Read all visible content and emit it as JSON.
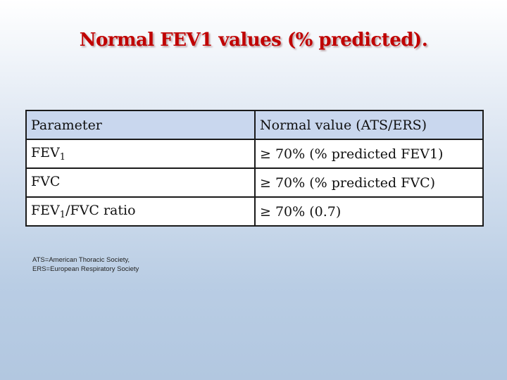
{
  "title": "Normal FEV1 values (% predicted).",
  "table": {
    "header": {
      "parameter": "Parameter",
      "normal_value": "Normal value (ATS/ERS)"
    },
    "rows": [
      {
        "param_main": "FEV",
        "param_sub": "1",
        "param_rest": "",
        "value": "≥ 70% (% predicted FEV1)"
      },
      {
        "param_main": "FVC",
        "param_sub": "",
        "param_rest": "",
        "value": "≥ 70% (% predicted FVC)"
      },
      {
        "param_main": "FEV",
        "param_sub": "1",
        "param_rest": "/FVC ratio",
        "value": "≥ 70% (0.7)"
      }
    ]
  },
  "footnote": {
    "line1": "ATS=American Thoracic Society,",
    "line2": "ERS=European Respiratory Society"
  }
}
